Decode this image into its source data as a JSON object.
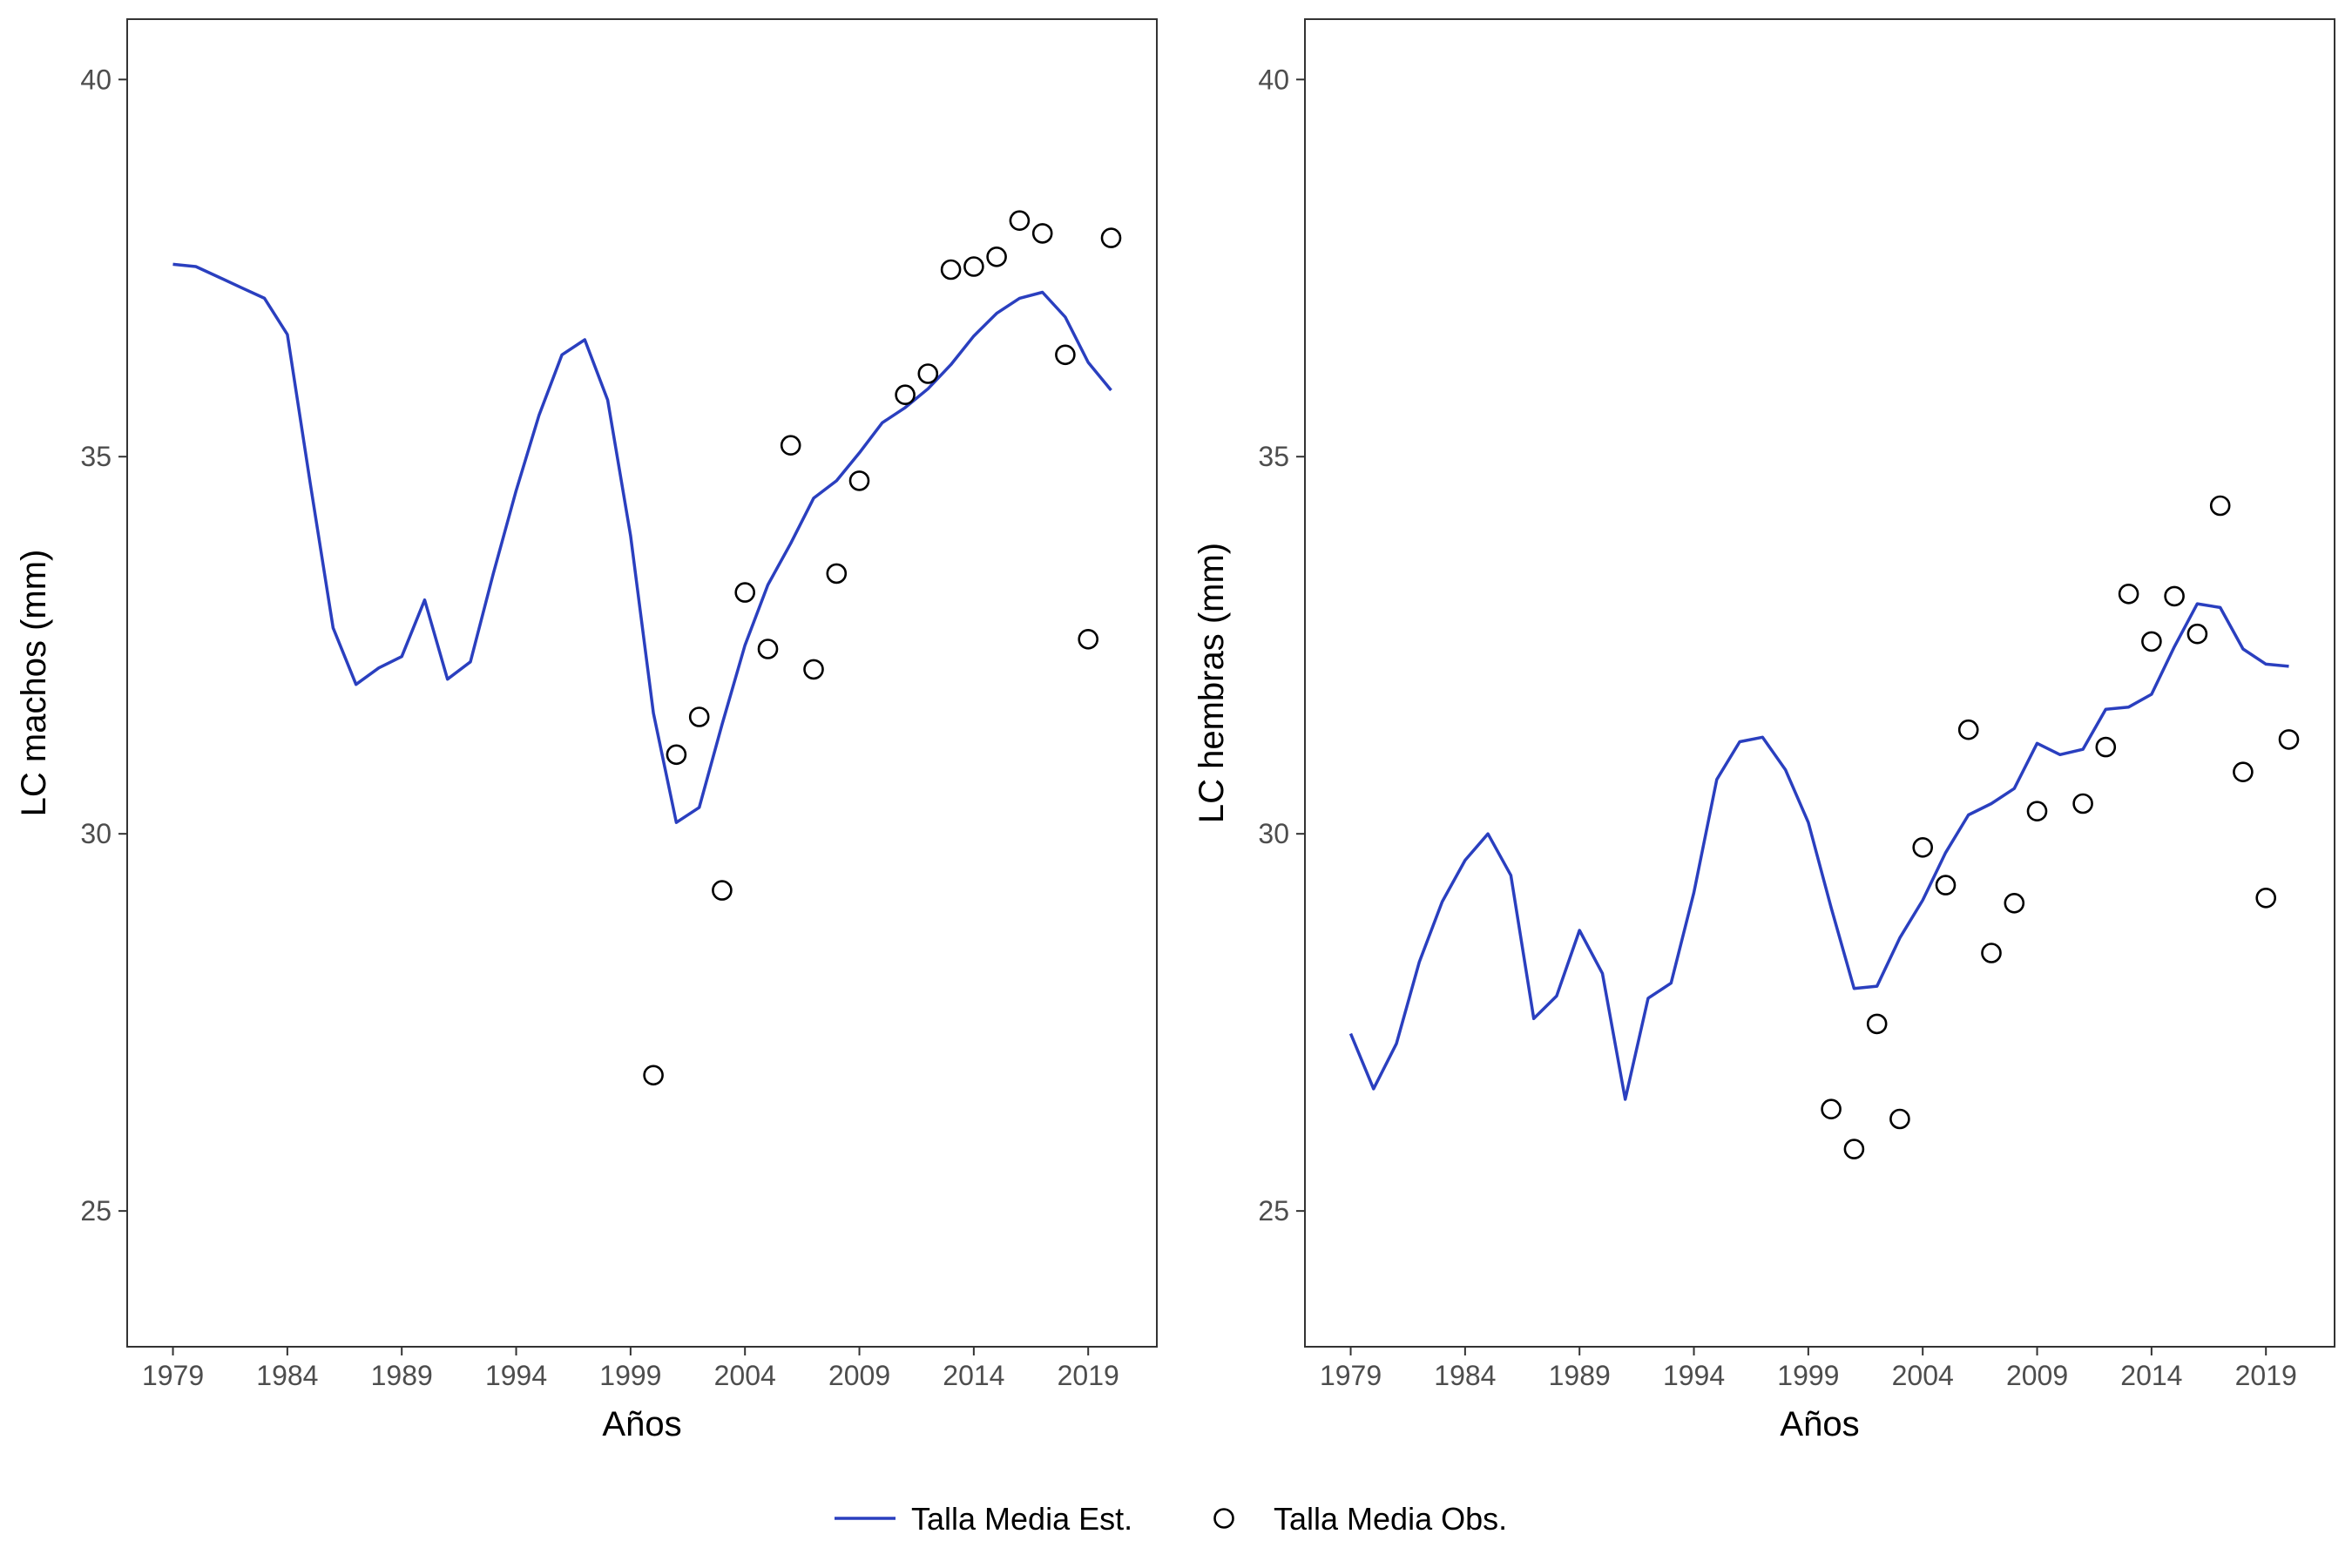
{
  "chart_data": [
    {
      "type": "line",
      "panel": "left",
      "xlabel": "Años",
      "ylabel": "LC machos (mm)",
      "xlim": [
        1977,
        2022
      ],
      "ylim": [
        23.2,
        40.8
      ],
      "xticks": [
        1979,
        1984,
        1989,
        1994,
        1999,
        2004,
        2009,
        2014,
        2019
      ],
      "yticks": [
        25,
        30,
        35,
        40
      ],
      "grid": false,
      "series": [
        {
          "name": "Talla Media Est.",
          "kind": "line",
          "color": "#2a3fbf",
          "x": [
            1979,
            1980,
            1981,
            1982,
            1983,
            1984,
            1985,
            1986,
            1987,
            1988,
            1989,
            1990,
            1991,
            1992,
            1993,
            1994,
            1995,
            1996,
            1997,
            1998,
            1999,
            2000,
            2001,
            2002,
            2003,
            2004,
            2005,
            2006,
            2007,
            2008,
            2009,
            2010,
            2011,
            2012,
            2013,
            2014,
            2015,
            2016,
            2017,
            2018,
            2019,
            2020
          ],
          "y": [
            37.55,
            37.52,
            37.38,
            37.24,
            37.1,
            36.62,
            34.65,
            32.73,
            31.98,
            32.2,
            32.35,
            33.1,
            32.05,
            32.28,
            33.45,
            34.55,
            35.55,
            36.35,
            36.55,
            35.75,
            33.95,
            31.6,
            30.15,
            30.35,
            31.45,
            32.5,
            33.3,
            33.85,
            34.45,
            34.68,
            35.05,
            35.45,
            35.65,
            35.9,
            36.22,
            36.6,
            36.9,
            37.1,
            37.18,
            36.85,
            36.25,
            35.88
          ]
        },
        {
          "name": "Talla Media Obs.",
          "kind": "points",
          "color": "#000000",
          "x": [
            2000,
            2001,
            2002,
            2003,
            2004,
            2005,
            2006,
            2007,
            2008,
            2009,
            2011,
            2012,
            2013,
            2014,
            2015,
            2016,
            2017,
            2018,
            2019,
            2020
          ],
          "y": [
            26.8,
            31.05,
            31.55,
            29.25,
            33.2,
            32.45,
            35.15,
            32.18,
            33.45,
            34.68,
            35.82,
            36.1,
            37.48,
            37.52,
            37.65,
            38.13,
            37.96,
            36.35,
            32.58,
            37.9
          ]
        }
      ]
    },
    {
      "type": "line",
      "panel": "right",
      "xlabel": "Años",
      "ylabel": "LC hembras (mm)",
      "xlim": [
        1977,
        2022
      ],
      "ylim": [
        23.2,
        40.8
      ],
      "xticks": [
        1979,
        1984,
        1989,
        1994,
        1999,
        2004,
        2009,
        2014,
        2019
      ],
      "yticks": [
        25,
        30,
        35,
        40
      ],
      "grid": false,
      "series": [
        {
          "name": "Talla Media Est.",
          "kind": "line",
          "color": "#2a3fbf",
          "x": [
            1979,
            1980,
            1981,
            1982,
            1983,
            1984,
            1985,
            1986,
            1987,
            1988,
            1989,
            1990,
            1991,
            1992,
            1993,
            1994,
            1995,
            1996,
            1997,
            1998,
            1999,
            2000,
            2001,
            2002,
            2003,
            2004,
            2005,
            2006,
            2007,
            2008,
            2009,
            2010,
            2011,
            2012,
            2013,
            2014,
            2015,
            2016,
            2017,
            2018,
            2019,
            2020
          ],
          "y": [
            27.35,
            26.62,
            27.22,
            28.3,
            29.1,
            29.65,
            30.0,
            29.45,
            27.55,
            27.85,
            28.72,
            28.15,
            26.48,
            27.82,
            28.02,
            29.22,
            30.72,
            31.22,
            31.28,
            30.85,
            30.15,
            29.02,
            27.95,
            27.98,
            28.62,
            29.12,
            29.75,
            30.25,
            30.4,
            30.6,
            31.2,
            31.05,
            31.12,
            31.65,
            31.68,
            31.85,
            32.48,
            33.05,
            33.0,
            32.45,
            32.25,
            32.22
          ]
        },
        {
          "name": "Talla Media Obs.",
          "kind": "points",
          "color": "#000000",
          "x": [
            2000,
            2001,
            2002,
            2003,
            2004,
            2005,
            2006,
            2007,
            2008,
            2009,
            2011,
            2012,
            2013,
            2014,
            2015,
            2016,
            2017,
            2018,
            2019,
            2020
          ],
          "y": [
            26.35,
            25.82,
            27.48,
            26.22,
            29.82,
            29.32,
            31.38,
            28.42,
            29.08,
            30.3,
            30.4,
            31.15,
            33.18,
            32.55,
            33.15,
            32.65,
            34.35,
            30.82,
            29.15,
            31.25
          ]
        }
      ]
    }
  ],
  "legend": {
    "placement": "bottom",
    "items": [
      {
        "label": "Talla Media Est.",
        "symbol": "line",
        "color": "#2a3fbf"
      },
      {
        "label": "Talla Media Obs.",
        "symbol": "open-circle",
        "color": "#000000"
      }
    ]
  }
}
